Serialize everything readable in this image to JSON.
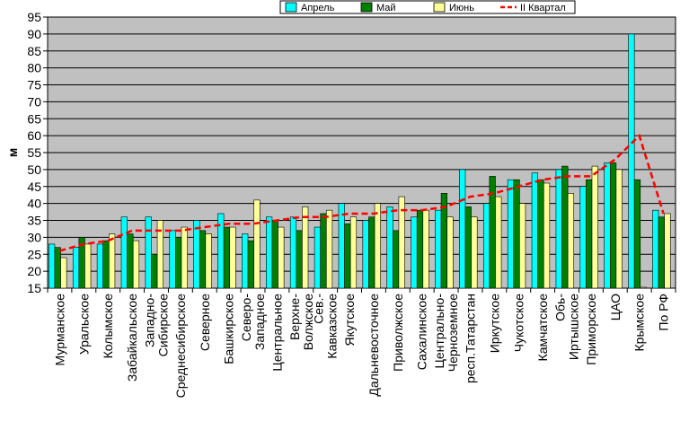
{
  "chart_data": {
    "type": "bar",
    "ylabel": "м",
    "ylim": [
      15,
      95
    ],
    "y_ticks": [
      15,
      20,
      25,
      30,
      35,
      40,
      45,
      50,
      55,
      60,
      65,
      70,
      75,
      80,
      85,
      90,
      95
    ],
    "grid": true,
    "legend_position": "top-right",
    "categories": [
      "Мурманское",
      "Уральское",
      "Колымское",
      "Забайкальское",
      "Западно-Сибирское",
      "Среднесибирское",
      "Северное",
      "Башкирское",
      "Северо-Западное",
      "Центральное",
      "Верхне-Волжское",
      "Сев.-Кавказское",
      "Якутское",
      "Дальневосточное",
      "Приволжское",
      "Сахалинское",
      "Центрально-Черноземное",
      "респ.Татарстан",
      "Иркутское",
      "Чукотское",
      "Камчатское",
      "Обь-Иртышское",
      "Приморское",
      "ЦАО",
      "Крымское",
      "По РФ"
    ],
    "category_lines": [
      [
        "Мурманское"
      ],
      [
        "Уральское"
      ],
      [
        "Колымское"
      ],
      [
        "Забайкальское"
      ],
      [
        "Западно-",
        "Сибирское"
      ],
      [
        "Среднесибирское"
      ],
      [
        "Северное"
      ],
      [
        "Башкирское"
      ],
      [
        "Северо-",
        "Западное"
      ],
      [
        "Центральное"
      ],
      [
        "Верхне-",
        "Волжское"
      ],
      [
        "Сев.-",
        "Кавказское"
      ],
      [
        "Якутское"
      ],
      [
        "Дальневосточное"
      ],
      [
        "Приволжское"
      ],
      [
        "Сахалинское"
      ],
      [
        "Центрально-",
        "Черноземное"
      ],
      [
        "респ.Татарстан"
      ],
      [
        "Иркутское"
      ],
      [
        "Чукотское"
      ],
      [
        "Камчатское"
      ],
      [
        "Обь-",
        "Иртышское"
      ],
      [
        "Приморское"
      ],
      [
        "ЦАО"
      ],
      [
        "Крымское"
      ],
      [
        "По РФ"
      ]
    ],
    "series": [
      {
        "name": "Апрель",
        "type": "bar",
        "color": "#00ffff",
        "values": [
          28,
          27,
          28,
          36,
          36,
          32,
          35,
          37,
          31,
          36,
          36,
          33,
          40,
          35,
          39,
          36,
          38,
          50,
          40,
          47,
          49,
          50,
          45,
          52,
          90,
          38
        ]
      },
      {
        "name": "Май",
        "type": "bar",
        "color": "#007f00",
        "values": [
          27,
          30,
          29,
          31,
          25,
          30,
          32,
          33,
          29,
          35,
          32,
          37,
          34,
          36,
          32,
          38,
          43,
          39,
          48,
          47,
          47,
          51,
          47,
          52,
          47,
          36
        ]
      },
      {
        "name": "Июнь",
        "type": "bar",
        "color": "#ffff99",
        "values": [
          24,
          28,
          31,
          29,
          35,
          33,
          31,
          33,
          41,
          33,
          39,
          38,
          36,
          40,
          42,
          38,
          36,
          36,
          42,
          40,
          46,
          43,
          51,
          50,
          15,
          37
        ]
      },
      {
        "name": "II Квартал",
        "type": "line",
        "color": "#ff0000",
        "values": [
          26,
          28,
          29,
          32,
          32,
          32,
          33,
          34,
          34,
          35,
          36,
          36,
          37,
          37,
          38,
          38,
          39,
          42,
          43,
          45,
          47,
          48,
          48,
          53,
          60,
          37
        ]
      }
    ]
  }
}
